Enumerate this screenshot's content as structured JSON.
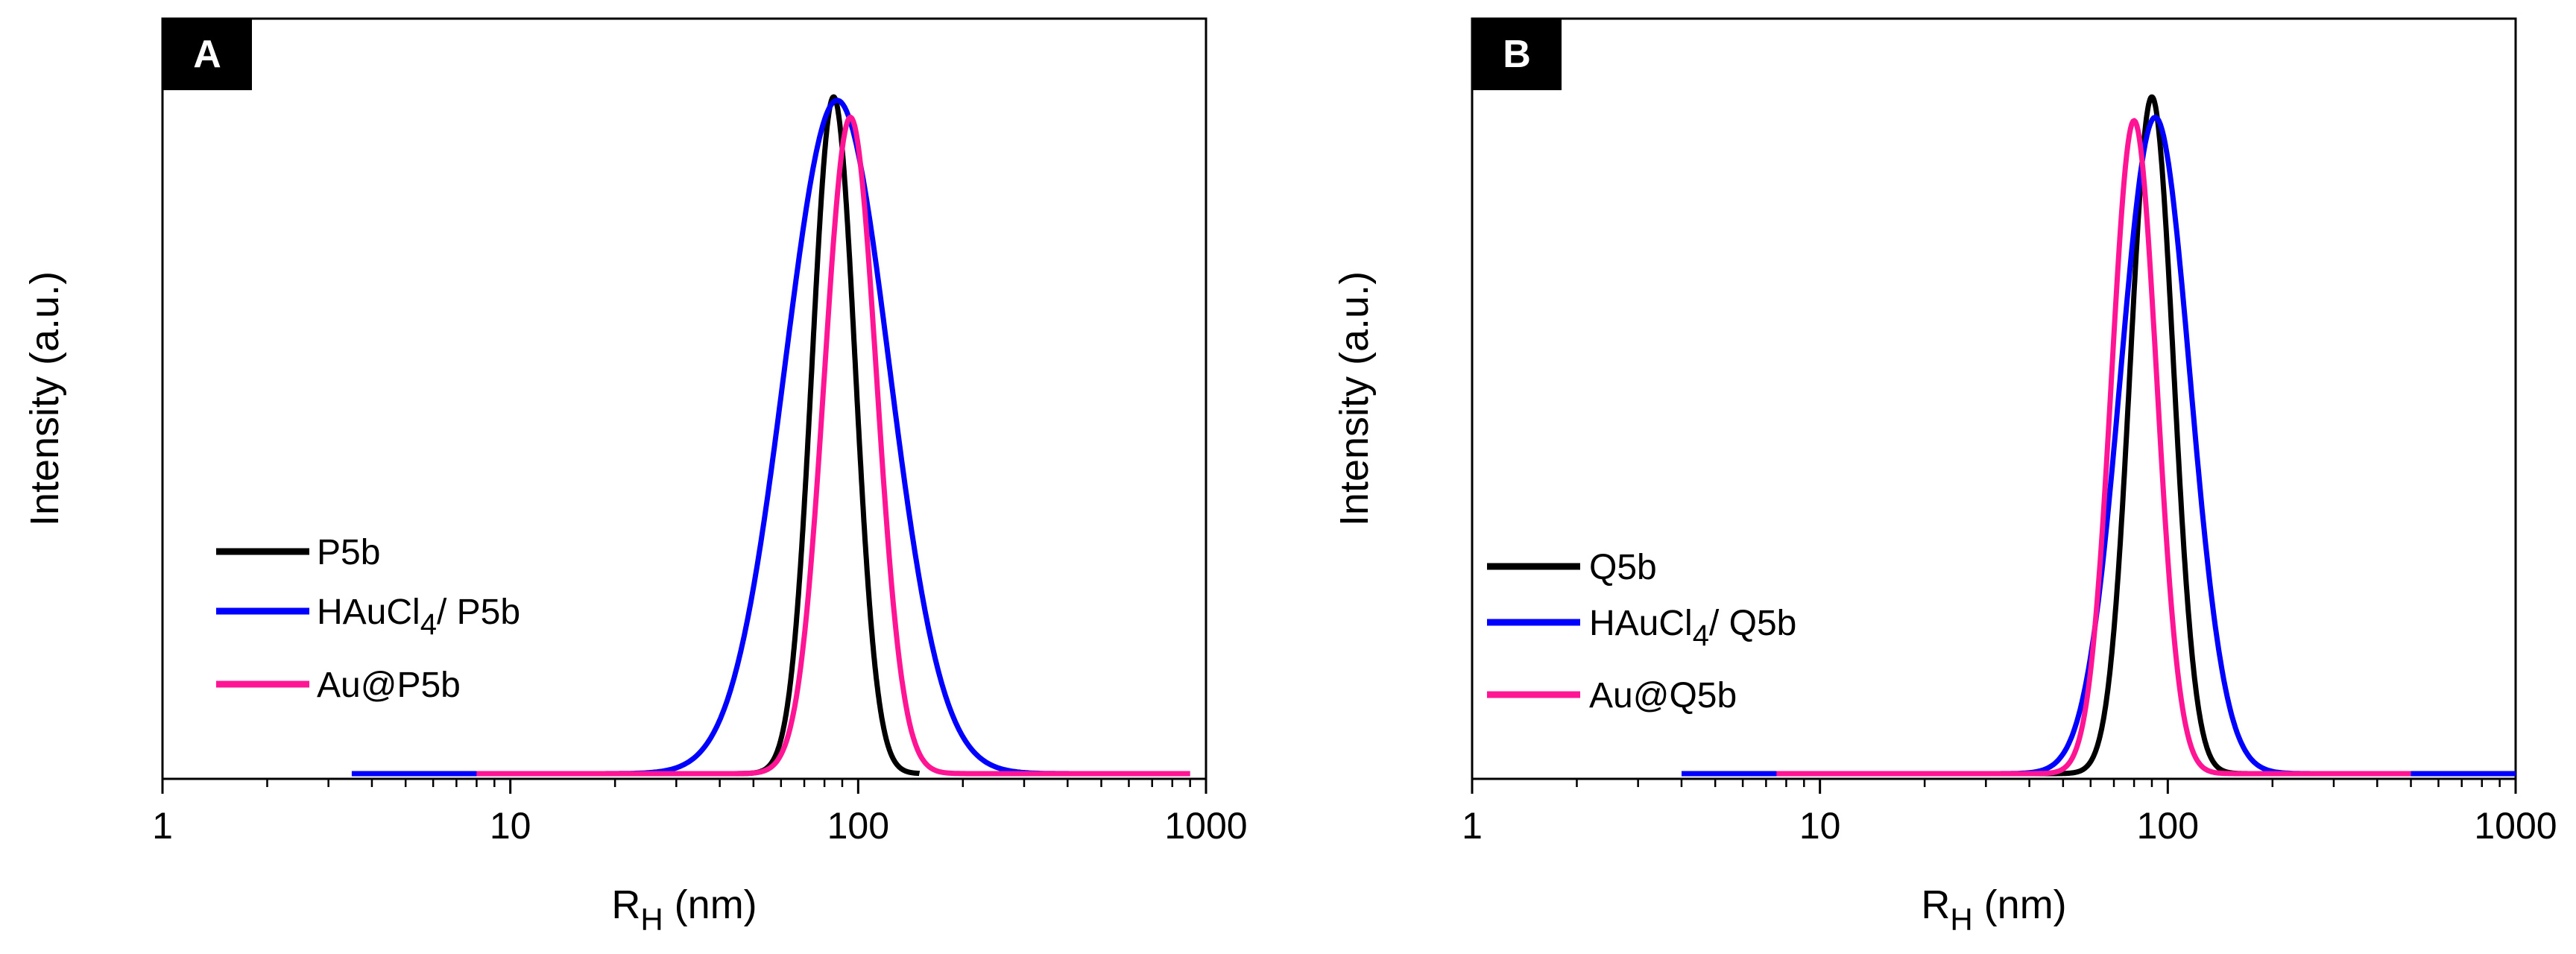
{
  "chart_data": [
    {
      "type": "line",
      "panel_label": "A",
      "xscale": "log",
      "xlim": [
        1,
        1000
      ],
      "xticks": [
        "1",
        "10",
        "100",
        "1000"
      ],
      "xlabel": "R",
      "xlabel_subscript": "H",
      "xlabel_unit": " (nm)",
      "ylabel": "Intensity (a.u.)",
      "ylim": [
        0,
        1.0
      ],
      "legend_position": "left-middle",
      "series": [
        {
          "name": "P5b",
          "label": "P5b",
          "label_subscript": "",
          "label_suffix": "",
          "color": "#000000",
          "peak_x": 85,
          "peak_y": 1.0,
          "width": 0.062,
          "x_start": 40,
          "x_end": 150
        },
        {
          "name": "HAuCl4/ P5b",
          "label": "HAuCl",
          "label_subscript": "4",
          "label_suffix": "/ P5b",
          "color": "#0000ff",
          "peak_x": 87,
          "peak_y": 0.995,
          "width": 0.15,
          "x_start": 3.5,
          "x_end": 900
        },
        {
          "name": "Au@P5b",
          "label": "Au@P5b",
          "label_subscript": "",
          "label_suffix": "",
          "color": "#ff1493",
          "peak_x": 95,
          "peak_y": 0.97,
          "width": 0.075,
          "x_start": 8,
          "x_end": 900
        }
      ]
    },
    {
      "type": "line",
      "panel_label": "B",
      "xscale": "log",
      "xlim": [
        1,
        1000
      ],
      "xticks": [
        "1",
        "10",
        "100",
        "1000"
      ],
      "xlabel": "R",
      "xlabel_subscript": "H",
      "xlabel_unit": " (nm)",
      "ylabel": "Intensity (a.u.)",
      "ylim": [
        0,
        1.0
      ],
      "legend_position": "left-middle",
      "series": [
        {
          "name": "Q5b",
          "label": "Q5b",
          "label_subscript": "",
          "label_suffix": "",
          "color": "#000000",
          "peak_x": 90,
          "peak_y": 1.0,
          "width": 0.062,
          "x_start": 30,
          "x_end": 300
        },
        {
          "name": "HAuCl4/ Q5b",
          "label": "HAuCl",
          "label_subscript": "4",
          "label_suffix": "/ Q5b",
          "color": "#0000ff",
          "peak_x": 92,
          "peak_y": 0.97,
          "width": 0.1,
          "x_start": 4,
          "x_end": 1000
        },
        {
          "name": "Au@Q5b",
          "label": "Au@Q5b",
          "label_subscript": "",
          "label_suffix": "",
          "color": "#ff1493",
          "peak_x": 80,
          "peak_y": 0.965,
          "width": 0.065,
          "x_start": 7.5,
          "x_end": 500
        }
      ]
    }
  ]
}
